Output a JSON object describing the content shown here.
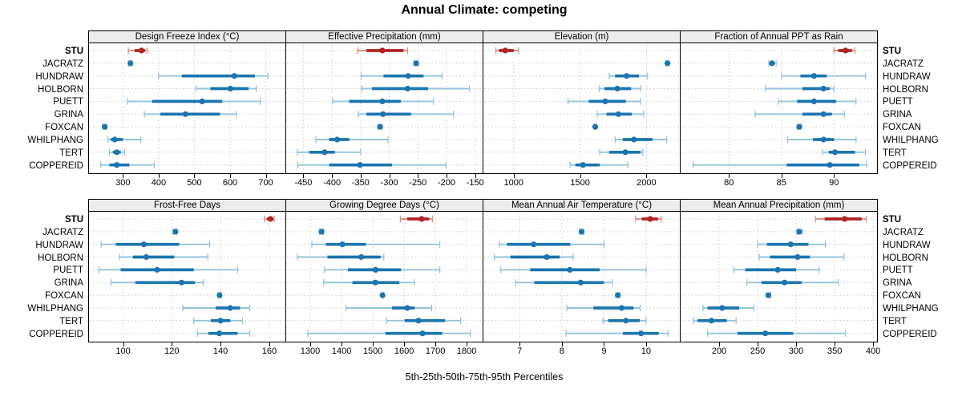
{
  "title": "Annual Climate: competing",
  "caption": "5th-25th-50th-75th-95th Percentiles",
  "percentiles": [
    "5th",
    "25th",
    "50th",
    "75th",
    "95th"
  ],
  "stations": [
    "STU",
    "JACRATZ",
    "HUNDRAW",
    "HOLBORN",
    "PUETT",
    "GRINA",
    "FOXCAN",
    "WHILPHANG",
    "TERT",
    "COPPEREID"
  ],
  "highlight_station": "STU",
  "colors": {
    "blue": "#1b75af",
    "blue_light": "#96c3dd",
    "red": "#b22222",
    "red_light": "#d89186",
    "strip_bg": "#ececec",
    "grid": "#cbcbcb",
    "border": "#000000"
  },
  "chart_data": [
    {
      "type": "percentile-interval-dotplot",
      "title": "Design Freeze Index (°C)",
      "row": 0,
      "col": 0,
      "xlim": [
        205,
        755
      ],
      "ticks": [
        300,
        400,
        500,
        600,
        700
      ],
      "grid": true,
      "values": {
        "STU": [
          315,
          333,
          352,
          362,
          368
        ],
        "JACRATZ": [
          316,
          318,
          321,
          324,
          326
        ],
        "HUNDRAW": [
          400,
          465,
          612,
          670,
          706
        ],
        "HOLBORN": [
          505,
          545,
          601,
          652,
          674
        ],
        "PUETT": [
          313,
          382,
          522,
          578,
          685
        ],
        "GRINA": [
          360,
          405,
          475,
          572,
          618
        ],
        "FOXCAN": [
          243,
          246,
          249,
          252,
          255
        ],
        "WHILPHANG": [
          258,
          266,
          277,
          300,
          350
        ],
        "TERT": [
          262,
          272,
          283,
          294,
          305
        ],
        "COPPEREID": [
          238,
          262,
          283,
          318,
          388
        ]
      }
    },
    {
      "type": "percentile-interval-dotplot",
      "title": "Effective Precipitation (mm)",
      "row": 0,
      "col": 1,
      "xlim": [
        -480,
        -137
      ],
      "ticks": [
        -450,
        -400,
        -350,
        -300,
        -250,
        -200,
        -150
      ],
      "grid": true,
      "values": {
        "STU": [
          -355,
          -340,
          -312,
          -275,
          -268
        ],
        "JACRATZ": [
          -257,
          -255,
          -253,
          -251,
          -249
        ],
        "HUNDRAW": [
          -349,
          -310,
          -267,
          -240,
          -208
        ],
        "HOLBORN": [
          -348,
          -330,
          -268,
          -232,
          -160
        ],
        "PUETT": [
          -399,
          -370,
          -312,
          -280,
          -223
        ],
        "GRINA": [
          -354,
          -340,
          -311,
          -262,
          -188
        ],
        "FOXCAN": [
          -320,
          -318,
          -316,
          -314,
          -312
        ],
        "WHILPHANG": [
          -428,
          -405,
          -391,
          -370,
          -302
        ],
        "TERT": [
          -461,
          -440,
          -413,
          -395,
          -350
        ],
        "COPPEREID": [
          -460,
          -405,
          -351,
          -295,
          -201
        ]
      }
    },
    {
      "type": "percentile-interval-dotplot",
      "title": "Elevation (m)",
      "row": 0,
      "col": 2,
      "xlim": [
        772,
        2251
      ],
      "ticks": [
        1000,
        1500,
        2000
      ],
      "grid": true,
      "values": {
        "STU": [
          866,
          890,
          936,
          1000,
          1036
        ],
        "JACRATZ": [
          2148,
          2153,
          2158,
          2163,
          2168
        ],
        "HUNDRAW": [
          1720,
          1764,
          1850,
          1944,
          2008
        ],
        "HOLBORN": [
          1645,
          1684,
          1780,
          1884,
          1958
        ],
        "PUETT": [
          1409,
          1565,
          1689,
          1844,
          1955
        ],
        "GRINA": [
          1629,
          1700,
          1788,
          1890,
          1978
        ],
        "FOXCAN": [
          1607,
          1610,
          1614,
          1618,
          1621
        ],
        "WHILPHANG": [
          1764,
          1821,
          1906,
          2045,
          2152
        ],
        "TERT": [
          1648,
          1720,
          1841,
          1955,
          1972
        ],
        "COPPEREID": [
          1424,
          1465,
          1522,
          1648,
          1860
        ]
      }
    },
    {
      "type": "percentile-interval-dotplot",
      "title": "Fraction of Annual PPT as Rain",
      "row": 0,
      "col": 3,
      "xlim": [
        75.4,
        94.1
      ],
      "ticks": [
        80,
        85,
        90
      ],
      "grid": true,
      "values": {
        "STU": [
          90.0,
          90.4,
          91.1,
          91.7,
          92.0
        ],
        "JACRATZ": [
          83.8,
          84.0,
          84.1,
          84.3,
          84.5
        ],
        "HUNDRAW": [
          85.0,
          86.8,
          88.1,
          89.3,
          93.0
        ],
        "HOLBORN": [
          83.5,
          87.0,
          89.0,
          89.6,
          90.0
        ],
        "PUETT": [
          84.7,
          86.5,
          88.1,
          90.2,
          92.1
        ],
        "GRINA": [
          82.5,
          87.0,
          89.0,
          89.8,
          91.0
        ],
        "FOXCAN": [
          86.5,
          86.6,
          86.7,
          86.8,
          86.9
        ],
        "WHILPHANG": [
          85.6,
          88.0,
          89.0,
          90.0,
          92.1
        ],
        "TERT": [
          88.9,
          89.5,
          90.1,
          92.0,
          93.0
        ],
        "COPPEREID": [
          76.6,
          85.5,
          89.6,
          92.4,
          93.1
        ]
      }
    },
    {
      "type": "percentile-interval-dotplot",
      "title": "Frost-Free Days",
      "row": 1,
      "col": 0,
      "xlim": [
        86,
        166.6
      ],
      "ticks": [
        100,
        120,
        140,
        160
      ],
      "grid": true,
      "values": {
        "STU": [
          158,
          159,
          160.5,
          161.5,
          162
        ],
        "JACRATZ": [
          120.5,
          121,
          121.5,
          121.8,
          122
        ],
        "HUNDRAW": [
          91,
          97,
          108.5,
          123,
          135.5
        ],
        "HOLBORN": [
          98.5,
          104,
          109.5,
          121,
          134.8
        ],
        "PUETT": [
          90,
          99,
          114,
          129,
          147
        ],
        "GRINA": [
          95,
          105,
          124,
          129.5,
          133
        ],
        "FOXCAN": [
          139,
          139.3,
          139.6,
          140,
          140.3
        ],
        "WHILPHANG": [
          124.5,
          138,
          144,
          148,
          152
        ],
        "TERT": [
          129,
          136,
          140,
          144,
          149
        ],
        "COPPEREID": [
          130.5,
          135,
          139.5,
          147,
          152
        ]
      }
    },
    {
      "type": "percentile-interval-dotplot",
      "title": "Growing Degree Days (°C)",
      "row": 1,
      "col": 1,
      "xlim": [
        1223,
        1851
      ],
      "ticks": [
        1300,
        1400,
        1500,
        1600,
        1700,
        1800
      ],
      "grid": true,
      "values": {
        "STU": [
          1588,
          1610,
          1656,
          1680,
          1691
        ],
        "JACRATZ": [
          1330,
          1333,
          1336,
          1339,
          1342
        ],
        "HUNDRAW": [
          1305,
          1350,
          1403,
          1478,
          1714
        ],
        "HOLBORN": [
          1258,
          1355,
          1463,
          1525,
          1535
        ],
        "PUETT": [
          1345,
          1420,
          1509,
          1590,
          1714
        ],
        "GRINA": [
          1343,
          1435,
          1508,
          1585,
          1633
        ],
        "FOXCAN": [
          1528,
          1530,
          1531,
          1533,
          1535
        ],
        "WHILPHANG": [
          1414,
          1561,
          1610,
          1634,
          1688
        ],
        "TERT": [
          1544,
          1602,
          1646,
          1731,
          1781
        ],
        "COPPEREID": [
          1292,
          1540,
          1659,
          1722,
          1812
        ]
      }
    },
    {
      "type": "percentile-interval-dotplot",
      "title": "Mean Annual Air Temperature (°C)",
      "row": 1,
      "col": 2,
      "xlim": [
        6.14,
        10.8
      ],
      "ticks": [
        7,
        8,
        9,
        10
      ],
      "grid": true,
      "values": {
        "STU": [
          9.75,
          9.9,
          10.1,
          10.28,
          10.36
        ],
        "JACRATZ": [
          8.42,
          8.44,
          8.47,
          8.5,
          8.52
        ],
        "HUNDRAW": [
          6.52,
          6.7,
          7.33,
          8.2,
          9.0
        ],
        "HOLBORN": [
          6.4,
          6.78,
          7.64,
          7.95,
          8.27
        ],
        "PUETT": [
          6.55,
          7.25,
          8.19,
          8.9,
          10.0
        ],
        "GRINA": [
          6.9,
          7.35,
          8.45,
          9.0,
          9.2
        ],
        "FOXCAN": [
          9.28,
          9.3,
          9.33,
          9.36,
          9.38
        ],
        "WHILPHANG": [
          8.12,
          8.75,
          9.42,
          9.7,
          9.86
        ],
        "TERT": [
          8.98,
          9.1,
          9.52,
          9.85,
          10.0
        ],
        "COPPEREID": [
          8.1,
          9.45,
          9.88,
          10.3,
          10.52
        ]
      }
    },
    {
      "type": "percentile-interval-dotplot",
      "title": "Mean Annual Precipitation (mm)",
      "row": 1,
      "col": 3,
      "xlim": [
        150,
        405
      ],
      "ticks": [
        200,
        250,
        300,
        350,
        400
      ],
      "grid": true,
      "values": {
        "STU": [
          325,
          337,
          363,
          385,
          391
        ],
        "JACRATZ": [
          301,
          302,
          304,
          306,
          308
        ],
        "HUNDRAW": [
          250,
          262,
          293,
          316,
          338
        ],
        "HOLBORN": [
          252,
          266,
          302,
          318,
          362
        ],
        "PUETT": [
          219,
          234,
          276,
          300,
          330
        ],
        "GRINA": [
          236,
          255,
          285,
          307,
          355
        ],
        "FOXCAN": [
          261,
          262,
          264,
          266,
          267
        ],
        "WHILPHANG": [
          179,
          185,
          204,
          226,
          245
        ],
        "TERT": [
          167,
          172,
          190,
          210,
          222
        ],
        "COPPEREID": [
          185,
          224,
          260,
          296,
          364
        ]
      }
    }
  ]
}
